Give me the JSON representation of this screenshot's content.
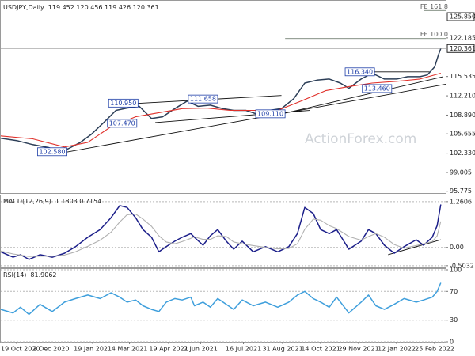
{
  "chart_data": [
    {
      "type": "line",
      "title": "USDJPY,Daily",
      "subtitle": "119.452 120.456 119.426 120.361",
      "xlim": [
        0,
        363
      ],
      "ylim": [
        95.6,
        128.3
      ],
      "yticks": [
        122.185,
        115.535,
        {
          "value": 112.21,
          "label": "112.210"
        },
        {
          "value": 108.89,
          "label": "108.890"
        },
        105.655,
        {
          "value": 102.33,
          "label": "102.330"
        },
        99.005,
        95.775
      ],
      "grid": false,
      "last_value_marker": true,
      "levels": [
        {
          "value": 125.85,
          "label": "125.850"
        }
      ],
      "fib_levels": [
        {
          "label": "FE 161.8",
          "value": 126.9,
          "x": 345
        },
        {
          "label": "FE 100.0",
          "value": 122.07,
          "x": 232
        }
      ],
      "series": [
        {
          "color": "#2c3e57",
          "x": [
            0,
            13,
            26,
            39,
            48,
            55,
            65,
            74,
            84,
            94,
            103,
            113,
            123,
            132,
            142,
            152,
            161,
            171,
            181,
            190,
            200,
            210,
            219,
            229,
            239,
            248,
            258,
            268,
            277,
            284,
            294,
            303,
            313,
            323,
            332,
            342,
            348,
            354,
            357,
            359
          ],
          "values": [
            104.9,
            104.5,
            103.8,
            103.3,
            102.6,
            103.1,
            104.2,
            105.6,
            107.6,
            109.7,
            110.1,
            110.4,
            108.3,
            108.6,
            110.0,
            111.3,
            110.4,
            110.6,
            110.0,
            109.7,
            109.7,
            109.0,
            109.7,
            110.0,
            111.7,
            114.4,
            114.9,
            115.1,
            114.4,
            113.5,
            115.1,
            116.1,
            115.1,
            115.1,
            115.5,
            115.5,
            115.8,
            117.2,
            119.2,
            120.361
          ]
        },
        {
          "color": "#e0302a",
          "x": [
            0,
            26,
            52,
            71,
            90,
            110,
            129,
            148,
            168,
            187,
            206,
            226,
            245,
            265,
            284,
            303,
            323,
            342,
            359
          ],
          "values": [
            105.3,
            104.8,
            103.4,
            104.2,
            106.9,
            108.6,
            109.3,
            110.0,
            110.1,
            109.7,
            109.7,
            109.7,
            111.3,
            113.1,
            113.8,
            114.4,
            114.7,
            115.1,
            116.1
          ]
        }
      ],
      "trendlines": [
        {
          "x": [
            52,
            363
          ],
          "values": [
            102.46,
            114.2
          ]
        },
        {
          "x": [
            88,
            229
          ],
          "values": [
            110.63,
            112.27
          ]
        },
        {
          "x": [
            126,
            252
          ],
          "values": [
            107.6,
            109.7
          ]
        },
        {
          "x": [
            219,
            361
          ],
          "values": [
            108.6,
            115.5
          ]
        },
        {
          "x": [
            281,
            350
          ],
          "values": [
            116.34,
            116.34
          ]
        }
      ],
      "annotations": [
        {
          "x": 30,
          "value": 102.58,
          "label": "102.580"
        },
        {
          "x": 87,
          "value": 107.47,
          "label": "107.470"
        },
        {
          "x": 88,
          "value": 110.95,
          "label": "110.950"
        },
        {
          "x": 153,
          "value": 111.658,
          "label": "111.658"
        },
        {
          "x": 208,
          "value": 109.11,
          "label": "109.110"
        },
        {
          "x": 281,
          "value": 116.34,
          "label": "116.340"
        },
        {
          "x": 295,
          "value": 113.46,
          "label": "113.460"
        }
      ],
      "watermark": "ActionForex.com"
    },
    {
      "type": "line",
      "title": "MACD(12,26,9)",
      "subtitle": "1.1803 0.7154",
      "xlim": [
        0,
        363
      ],
      "ylim": [
        -0.55,
        1.41
      ],
      "yticks": [
        1.2606,
        {
          "value": 0,
          "label": "0.00"
        },
        -0.5032
      ],
      "grid": true,
      "series": [
        {
          "color": "#1c1f8a",
          "x": [
            0,
            10,
            16,
            23,
            32,
            42,
            52,
            61,
            71,
            81,
            90,
            97,
            103,
            110,
            116,
            123,
            129,
            135,
            142,
            148,
            155,
            158,
            165,
            171,
            177,
            184,
            190,
            197,
            206,
            216,
            226,
            235,
            242,
            248,
            255,
            261,
            268,
            274,
            284,
            294,
            300,
            306,
            313,
            321,
            329,
            339,
            345,
            352,
            356,
            359
          ],
          "values": [
            -0.12,
            -0.27,
            -0.2,
            -0.33,
            -0.2,
            -0.27,
            -0.16,
            0.02,
            0.28,
            0.49,
            0.82,
            1.15,
            1.1,
            0.82,
            0.49,
            0.28,
            -0.12,
            0.02,
            0.17,
            0.28,
            0.38,
            0.28,
            0.06,
            0.32,
            0.49,
            0.17,
            -0.05,
            0.17,
            -0.12,
            0.02,
            -0.12,
            0.02,
            0.38,
            1.1,
            0.93,
            0.49,
            0.38,
            0.49,
            -0.05,
            0.17,
            0.49,
            0.38,
            0.06,
            -0.16,
            0.02,
            0.21,
            0.06,
            0.28,
            0.6,
            1.1803
          ]
        },
        {
          "color": "#b0b0b0",
          "x": [
            0,
            10,
            16,
            23,
            32,
            42,
            52,
            61,
            71,
            81,
            90,
            97,
            103,
            110,
            116,
            123,
            129,
            135,
            142,
            148,
            155,
            158,
            165,
            171,
            177,
            184,
            190,
            197,
            206,
            216,
            226,
            235,
            242,
            248,
            255,
            261,
            268,
            274,
            284,
            294,
            300,
            306,
            313,
            321,
            329,
            339,
            345,
            352,
            356,
            359
          ],
          "values": [
            -0.1,
            -0.18,
            -0.21,
            -0.25,
            -0.24,
            -0.24,
            -0.21,
            -0.12,
            0.03,
            0.2,
            0.42,
            0.7,
            0.9,
            0.92,
            0.78,
            0.58,
            0.32,
            0.15,
            0.1,
            0.16,
            0.25,
            0.29,
            0.22,
            0.22,
            0.32,
            0.3,
            0.15,
            0.1,
            0.05,
            0.0,
            -0.04,
            -0.03,
            0.1,
            0.5,
            0.78,
            0.75,
            0.6,
            0.52,
            0.3,
            0.2,
            0.3,
            0.38,
            0.28,
            0.08,
            -0.02,
            0.05,
            0.1,
            0.16,
            0.32,
            0.7154
          ]
        }
      ],
      "trendlines": [
        {
          "x": [
            316,
            359
          ],
          "values": [
            -0.2,
            0.21
          ]
        }
      ]
    },
    {
      "type": "line",
      "title": "RSI(14)",
      "subtitle": "81.9062",
      "xlim": [
        0,
        363
      ],
      "ylim": [
        0,
        100
      ],
      "yticks": [
        100,
        70,
        30,
        0
      ],
      "grid": true,
      "series": [
        {
          "color": "#3f9fdc",
          "x": [
            0,
            10,
            16,
            23,
            32,
            42,
            52,
            61,
            71,
            81,
            90,
            97,
            103,
            110,
            116,
            123,
            129,
            135,
            142,
            148,
            155,
            158,
            165,
            171,
            177,
            184,
            190,
            197,
            206,
            216,
            226,
            235,
            242,
            248,
            255,
            261,
            268,
            274,
            284,
            294,
            300,
            306,
            313,
            321,
            329,
            339,
            345,
            352,
            356,
            359
          ],
          "values": [
            45,
            40,
            48,
            38,
            52,
            42,
            55,
            60,
            65,
            60,
            68,
            62,
            55,
            58,
            50,
            45,
            42,
            55,
            60,
            58,
            62,
            50,
            55,
            48,
            60,
            52,
            45,
            58,
            50,
            55,
            48,
            55,
            65,
            70,
            60,
            55,
            48,
            62,
            40,
            55,
            65,
            50,
            45,
            52,
            60,
            55,
            58,
            62,
            70,
            81.9062
          ]
        }
      ],
      "xticks": [
        {
          "value": 13,
          "label": "19 Oct 2020"
        },
        {
          "value": 41,
          "label": "2 Dec 2020"
        },
        {
          "value": 75,
          "label": "19 Jan 2021"
        },
        {
          "value": 105,
          "label": "4 Mar 2021"
        },
        {
          "value": 137,
          "label": "19 Apr 2021"
        },
        {
          "value": 163,
          "label": "2 Jun 2021"
        },
        {
          "value": 198,
          "label": "16 Jul 2021"
        },
        {
          "value": 230,
          "label": "31 Aug 2021"
        },
        {
          "value": 261,
          "label": "14 Oct 2021"
        },
        {
          "value": 292,
          "label": "29 Nov 2021"
        },
        {
          "value": 323,
          "label": "12 Jan 2022"
        },
        {
          "value": 354,
          "label": "25 Feb 2022"
        }
      ]
    }
  ]
}
